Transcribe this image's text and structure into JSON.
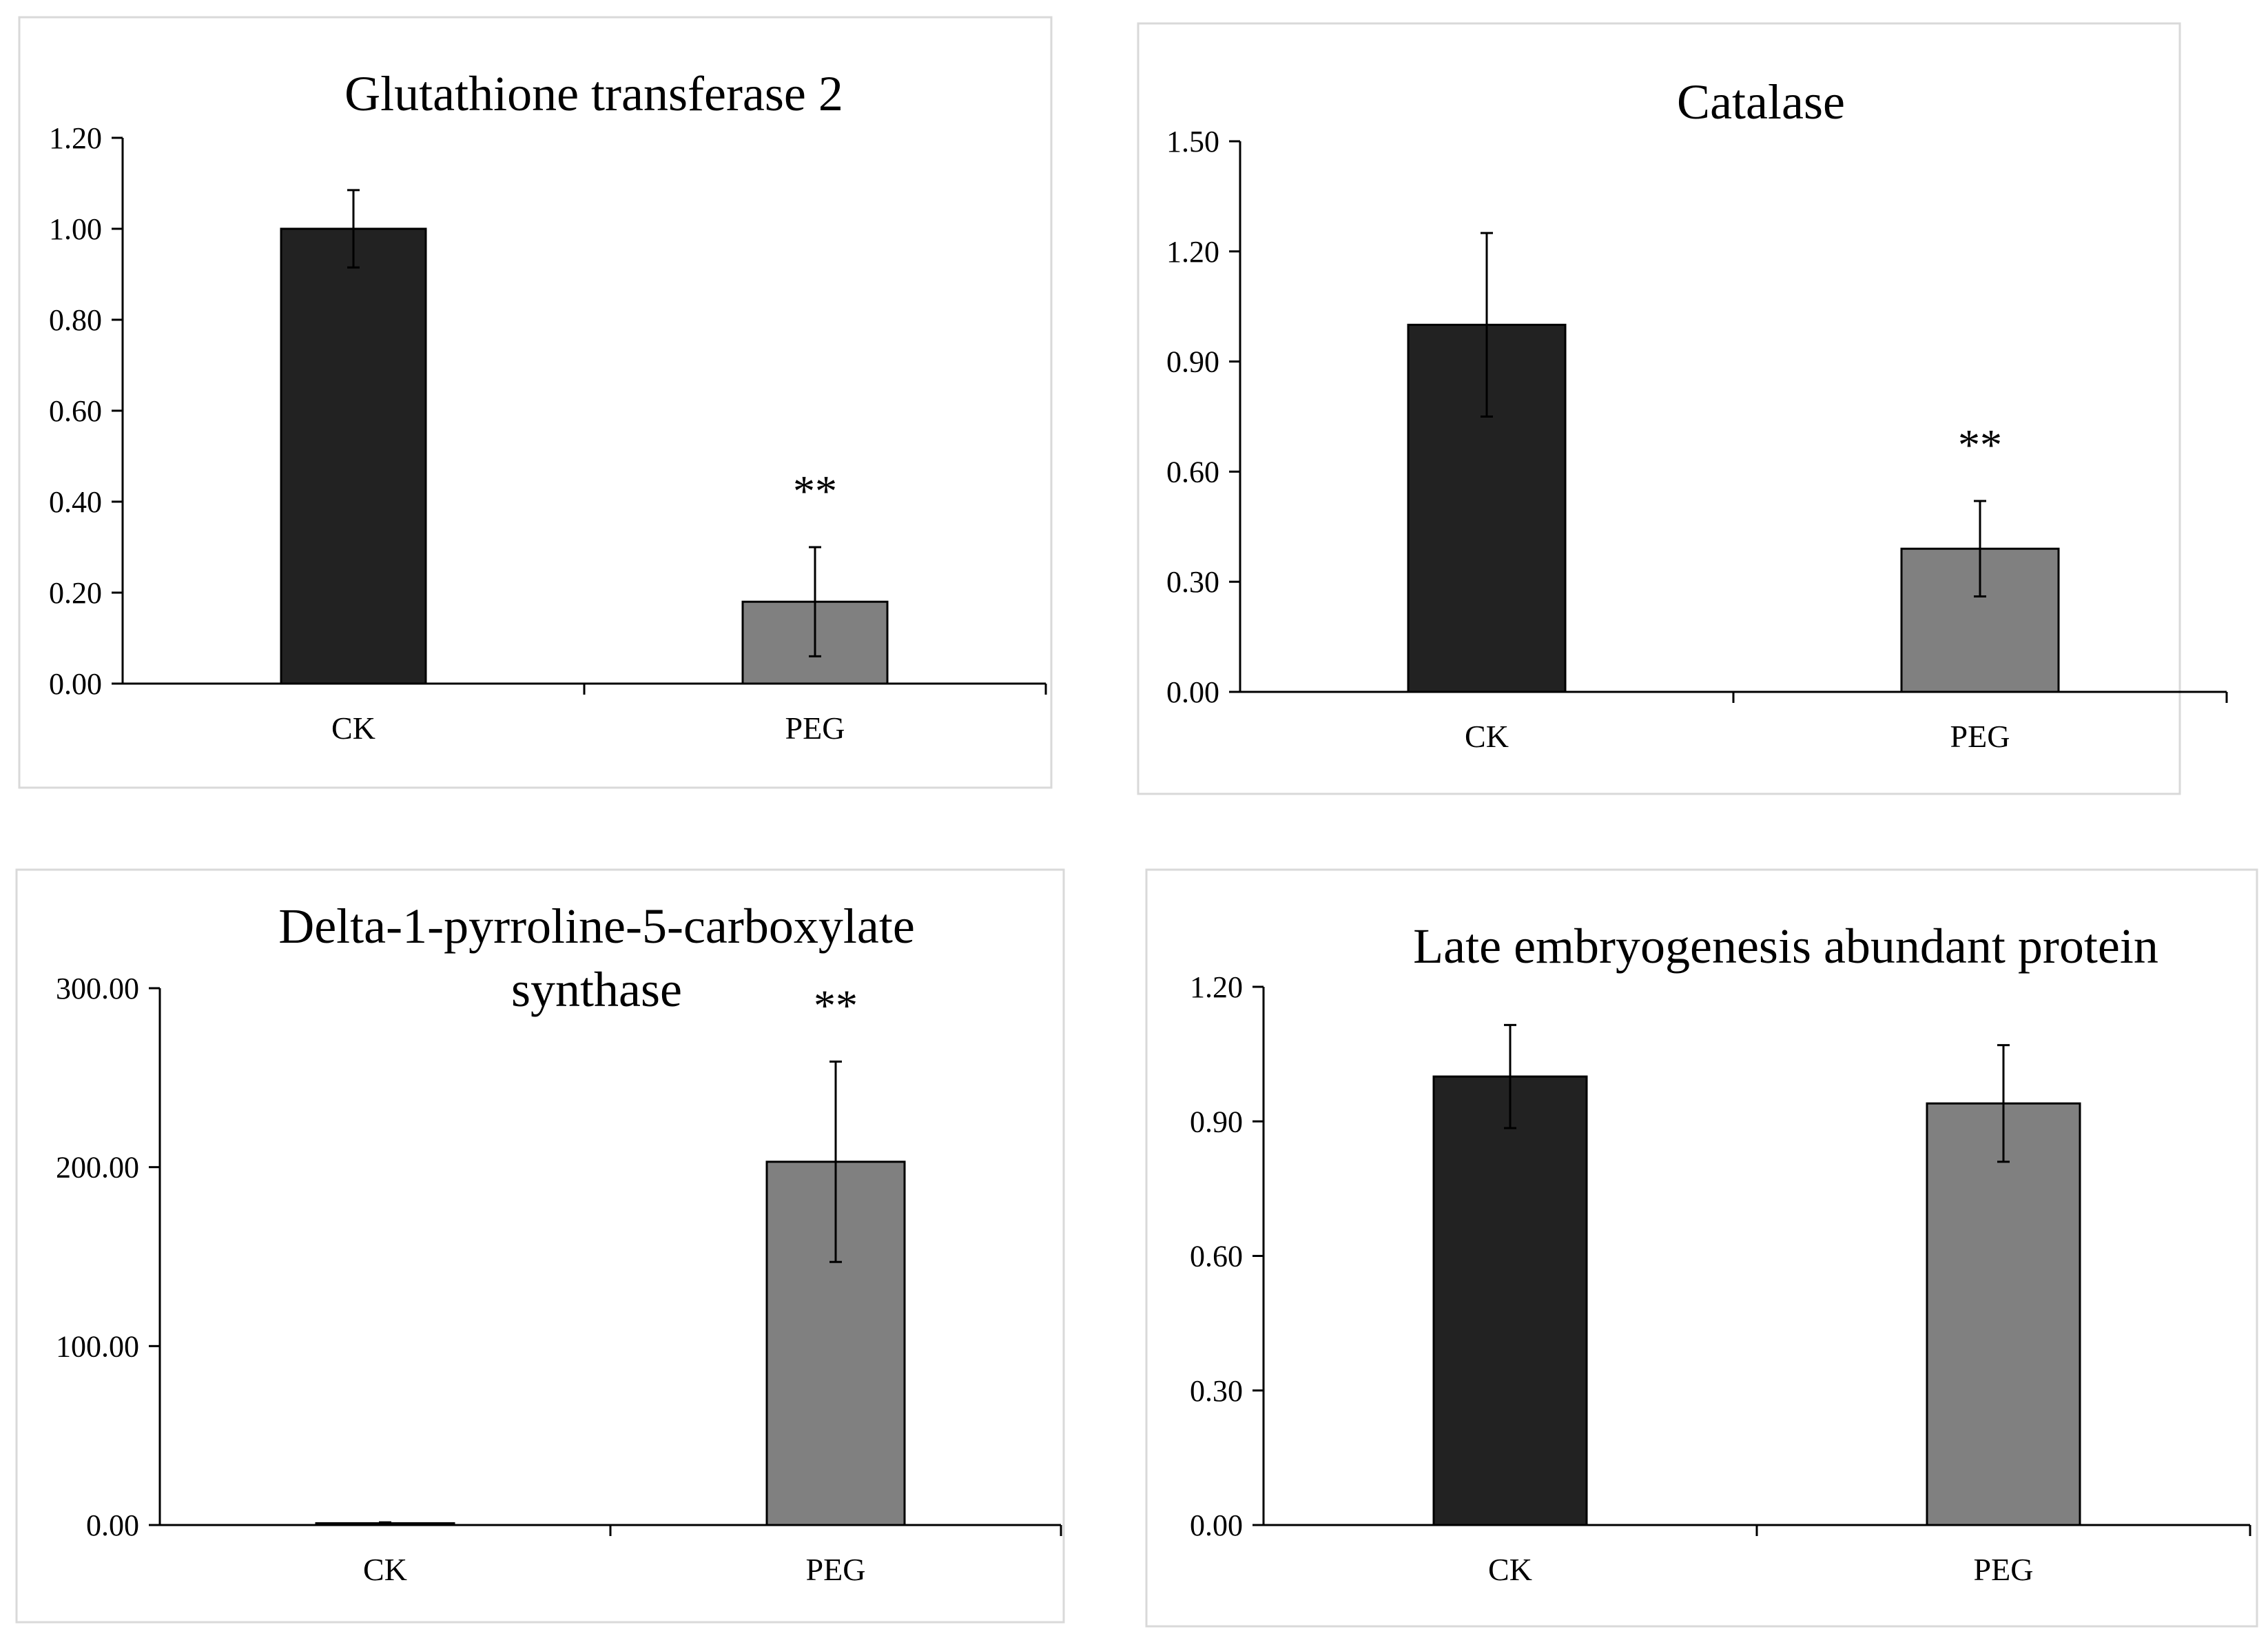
{
  "colors": {
    "ck": "#222222",
    "peg": "#808080",
    "axis": "#000000",
    "frame": "#d9d9d9"
  },
  "chart_data": [
    {
      "type": "bar",
      "title": [
        "Glutathione transferase 2"
      ],
      "categories": [
        "CK",
        "PEG"
      ],
      "values": [
        1.0,
        0.18
      ],
      "errors": [
        0.085,
        0.12
      ],
      "significance": [
        "",
        "**"
      ],
      "ylim": [
        0,
        1.2
      ],
      "yticks": [
        0,
        0.2,
        0.4,
        0.6,
        0.8,
        1.0,
        1.2
      ],
      "ytick_labels": [
        "0.00",
        "0.20",
        "0.40",
        "0.60",
        "0.80",
        "1.00",
        "1.20"
      ],
      "xlabel": "",
      "ylabel": "",
      "legend": "none",
      "grid": false
    },
    {
      "type": "bar",
      "title": [
        "Catalase"
      ],
      "categories": [
        "CK",
        "PEG"
      ],
      "values": [
        1.0,
        0.39
      ],
      "errors": [
        0.25,
        0.13
      ],
      "significance": [
        "",
        "**"
      ],
      "ylim": [
        0,
        1.5
      ],
      "yticks": [
        0,
        0.3,
        0.6,
        0.9,
        1.2,
        1.5
      ],
      "ytick_labels": [
        "0.00",
        "0.30",
        "0.60",
        "0.90",
        "1.20",
        "1.50"
      ],
      "xlabel": "",
      "ylabel": "",
      "legend": "none",
      "grid": false
    },
    {
      "type": "bar",
      "title": [
        "Delta-1-pyrroline-5-carboxylate",
        "synthase"
      ],
      "categories": [
        "CK",
        "PEG"
      ],
      "values": [
        1.0,
        203.0
      ],
      "errors": [
        0.5,
        56.0
      ],
      "significance": [
        "",
        "**"
      ],
      "ylim": [
        0,
        300
      ],
      "yticks": [
        0,
        100,
        200,
        300
      ],
      "ytick_labels": [
        "0.00",
        "100.00",
        "200.00",
        "300.00"
      ],
      "xlabel": "",
      "ylabel": "",
      "legend": "none",
      "grid": false
    },
    {
      "type": "bar",
      "title": [
        "Late embryogenesis abundant protein"
      ],
      "categories": [
        "CK",
        "PEG"
      ],
      "values": [
        1.0,
        0.94
      ],
      "errors": [
        0.115,
        0.13
      ],
      "significance": [
        "",
        ""
      ],
      "ylim": [
        0,
        1.2
      ],
      "yticks": [
        0,
        0.3,
        0.6,
        0.9,
        1.2
      ],
      "ytick_labels": [
        "0.00",
        "0.30",
        "0.60",
        "0.90",
        "1.20"
      ],
      "xlabel": "",
      "ylabel": "",
      "legend": "none",
      "grid": false
    }
  ]
}
